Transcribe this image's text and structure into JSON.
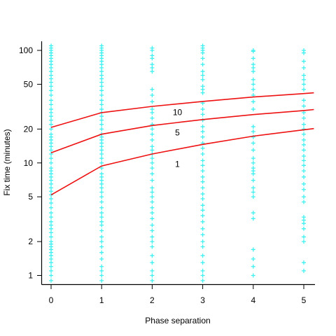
{
  "chart_data": {
    "type": "scatter",
    "title": "",
    "xlabel": "Phase separation",
    "ylabel": "Fix time (minutes)",
    "xlim": [
      -0.15,
      5.2
    ],
    "ylim": [
      0.85,
      120
    ],
    "yscale": "log",
    "xticks": [
      0,
      1,
      2,
      3,
      4,
      5
    ],
    "yticks": [
      1,
      2,
      5,
      10,
      20,
      50,
      100
    ],
    "grid": false,
    "legend": "none",
    "point_color": "#40F0F0",
    "line_color": "#EE1111",
    "points": [
      {
        "x": 0,
        "y": [
          0.9,
          1,
          1.1,
          1.2,
          1.3,
          1.4,
          1.5,
          1.6,
          1.7,
          1.8,
          1.9,
          2,
          2.2,
          2.4,
          2.6,
          2.8,
          3,
          3.3,
          3.6,
          4,
          4.4,
          4.8,
          5.2,
          5.6,
          6,
          6.5,
          7,
          7.5,
          8,
          8.5,
          9,
          10,
          11,
          12,
          13,
          14,
          15,
          16,
          17,
          18,
          20,
          22,
          24,
          26,
          28,
          30,
          33,
          36,
          40,
          44,
          48,
          52,
          56,
          60,
          65,
          70,
          75,
          80,
          85,
          90,
          95,
          100,
          105,
          110
        ]
      },
      {
        "x": 1,
        "y": [
          0.9,
          1,
          1.1,
          1.2,
          1.4,
          1.6,
          1.8,
          2,
          2.2,
          2.5,
          2.8,
          3,
          3.3,
          3.6,
          4,
          4.5,
          5,
          5.5,
          6,
          6.5,
          7,
          7.5,
          8,
          9,
          10,
          11,
          12,
          13,
          14,
          15,
          16,
          17,
          18,
          20,
          22,
          24,
          26,
          28,
          30,
          33,
          36,
          40,
          44,
          48,
          52,
          56,
          60,
          65,
          70,
          75,
          80,
          85,
          90,
          95,
          100,
          105,
          110
        ]
      },
      {
        "x": 2,
        "y": [
          0.9,
          1,
          1.1,
          1.3,
          1.5,
          1.8,
          2,
          2.2,
          2.5,
          2.8,
          3.2,
          3.6,
          4,
          4.5,
          5,
          5.5,
          6,
          7,
          8,
          9,
          10,
          11,
          12,
          13,
          14,
          16,
          18,
          20,
          22,
          25,
          28,
          30,
          35,
          40,
          45,
          65,
          70,
          75,
          85,
          90,
          100,
          105
        ]
      },
      {
        "x": 3,
        "y": [
          0.9,
          1,
          1.1,
          1.3,
          1.5,
          1.8,
          2,
          2.3,
          2.6,
          3,
          3.4,
          3.8,
          4.2,
          4.8,
          5.3,
          6,
          6.8,
          7.5,
          8.5,
          9.5,
          10.5,
          12,
          13.5,
          15,
          17,
          19,
          21,
          24,
          27,
          30,
          34,
          42,
          45,
          48,
          55,
          60,
          65,
          75,
          85,
          95,
          100,
          105,
          110
        ]
      },
      {
        "x": 4,
        "y": [
          1,
          1.2,
          1.4,
          1.7,
          3.2,
          3.6,
          5,
          5.5,
          6,
          7,
          8,
          8.5,
          9,
          10,
          11,
          13,
          15,
          17,
          19,
          21,
          30,
          35,
          40,
          45,
          50,
          55,
          65,
          70,
          75,
          85,
          98,
          100
        ]
      },
      {
        "x": 5,
        "y": [
          1.1,
          1.3,
          2,
          2.2,
          2.6,
          2.9,
          3.1,
          3.3,
          4.5,
          5,
          5.8,
          6.5,
          7.5,
          8.5,
          9.5,
          10.5,
          11.5,
          13,
          14.5,
          16,
          18,
          20,
          22,
          25,
          28,
          32,
          36,
          45,
          50,
          55,
          60,
          70,
          80,
          95,
          100
        ]
      }
    ],
    "series": [
      {
        "name": "1",
        "x": [
          0,
          1,
          2,
          3,
          4,
          5,
          5.2
        ],
        "y": [
          5.2,
          9.4,
          12,
          14.6,
          17.3,
          19.7,
          20.2
        ]
      },
      {
        "name": "5",
        "x": [
          0,
          1,
          2,
          3,
          4,
          5,
          5.2
        ],
        "y": [
          12.3,
          18,
          21.5,
          24.3,
          26.9,
          29.2,
          29.8
        ]
      },
      {
        "name": "10",
        "x": [
          0,
          1,
          2,
          3,
          4,
          5,
          5.2
        ],
        "y": [
          20.7,
          28,
          31.8,
          35.2,
          38.5,
          41.3,
          42
        ]
      }
    ],
    "annotations": [
      {
        "text": "10",
        "x": 2.5,
        "y": 26.5
      },
      {
        "text": "5",
        "x": 2.5,
        "y": 17.5
      },
      {
        "text": "1",
        "x": 2.5,
        "y": 9.2
      }
    ]
  }
}
